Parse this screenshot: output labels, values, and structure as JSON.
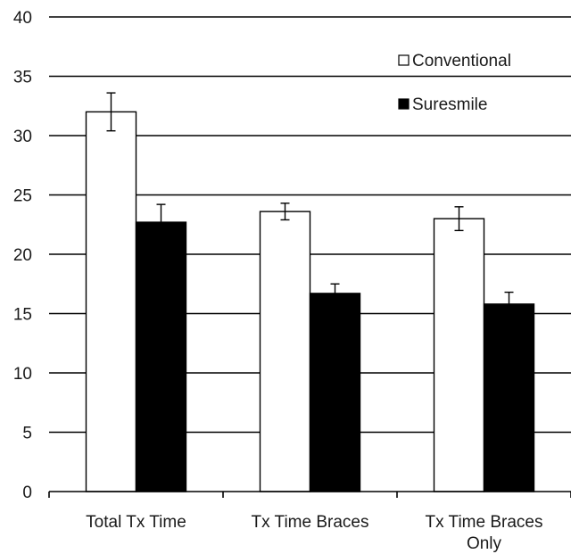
{
  "chart_data": {
    "type": "bar",
    "categories": [
      "Total Tx Time",
      "Tx Time Braces",
      "Tx Time Braces Only"
    ],
    "category_label_lines": [
      [
        "Total Tx Time"
      ],
      [
        "Tx Time Braces"
      ],
      [
        "Tx Time Braces",
        "Only"
      ]
    ],
    "series": [
      {
        "name": "Conventional",
        "color": "#ffffff",
        "values": [
          32.0,
          23.6,
          23.0
        ],
        "error": [
          1.6,
          0.7,
          1.0
        ]
      },
      {
        "name": "Suresmile",
        "color": "#000000",
        "values": [
          22.7,
          16.7,
          15.8
        ],
        "error": [
          1.5,
          0.8,
          1.0
        ]
      }
    ],
    "ylim": [
      0,
      40
    ],
    "yticks": [
      0,
      5,
      10,
      15,
      20,
      25,
      30,
      35,
      40
    ],
    "grid": true,
    "legend_position": "top-right",
    "title": "",
    "xlabel": "",
    "ylabel": ""
  }
}
